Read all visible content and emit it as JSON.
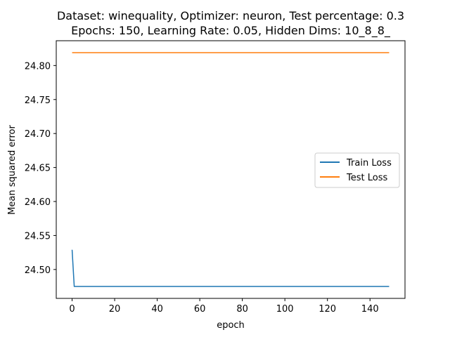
{
  "chart_data": {
    "type": "line",
    "title": "Dataset: winequality, Optimizer: neuron, Test percentage: 0.3",
    "subtitle": "Epochs: 150, Learning Rate: 0.05, Hidden Dims: 10_8_8_",
    "xlabel": "epoch",
    "ylabel": "Mean squared error",
    "xlim": [
      -7.45,
      156.45
    ],
    "ylim": [
      24.4575,
      24.8365
    ],
    "x_ticks": [
      0,
      20,
      40,
      60,
      80,
      100,
      120,
      140
    ],
    "y_ticks": [
      24.5,
      24.55,
      24.6,
      24.65,
      24.7,
      24.75,
      24.8
    ],
    "y_tick_decimals": 2,
    "grid": false,
    "legend_position": "center-right",
    "series": [
      {
        "name": "Train Loss",
        "color": "#1f77b4",
        "points": [
          [
            0,
            24.529
          ],
          [
            1,
            24.475
          ],
          [
            2,
            24.475
          ],
          [
            149,
            24.475
          ]
        ]
      },
      {
        "name": "Test Loss",
        "color": "#ff7f0e",
        "points": [
          [
            0,
            24.819
          ],
          [
            149,
            24.819
          ]
        ]
      }
    ]
  }
}
